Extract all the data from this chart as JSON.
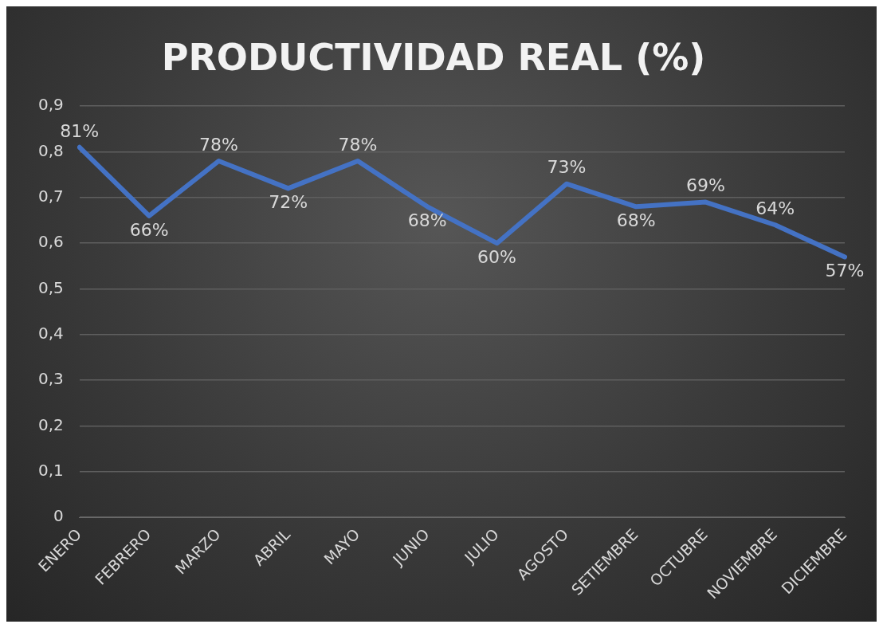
{
  "chart_data": {
    "type": "line",
    "title": "PRODUCTIVIDAD REAL (%)",
    "categories": [
      "ENERO",
      "FEBRERO",
      "MARZO",
      "ABRIL",
      "MAYO",
      "JUNIO",
      "JULIO",
      "AGOSTO",
      "SETIEMBRE",
      "OCTUBRE",
      "NOVIEMBRE",
      "DICIEMBRE"
    ],
    "series": [
      {
        "color": "#4472c4",
        "values": [
          0.81,
          0.66,
          0.78,
          0.72,
          0.78,
          0.68,
          0.6,
          0.73,
          0.68,
          0.69,
          0.64,
          0.57
        ],
        "value_labels": [
          "81%",
          "66%",
          "78%",
          "72%",
          "78%",
          "68%",
          "60%",
          "73%",
          "68%",
          "69%",
          "64%",
          "57%"
        ]
      }
    ],
    "ylim": [
      0,
      0.9
    ],
    "yticks": [
      0,
      {
        "value": 0.1,
        "label": "0,1"
      },
      {
        "value": 0.2,
        "label": "0,2"
      },
      {
        "value": 0.3,
        "label": "0,3"
      },
      {
        "value": 0.4,
        "label": "0,4"
      },
      {
        "value": 0.5,
        "label": "0,5"
      },
      {
        "value": 0.6,
        "label": "0,6"
      },
      {
        "value": 0.7,
        "label": "0,7"
      },
      {
        "value": 0.8,
        "label": "0,8"
      },
      {
        "value": 0.9,
        "label": "0,9"
      }
    ],
    "grid": "y",
    "legend": false,
    "marker": "none",
    "line_style": "solid"
  }
}
